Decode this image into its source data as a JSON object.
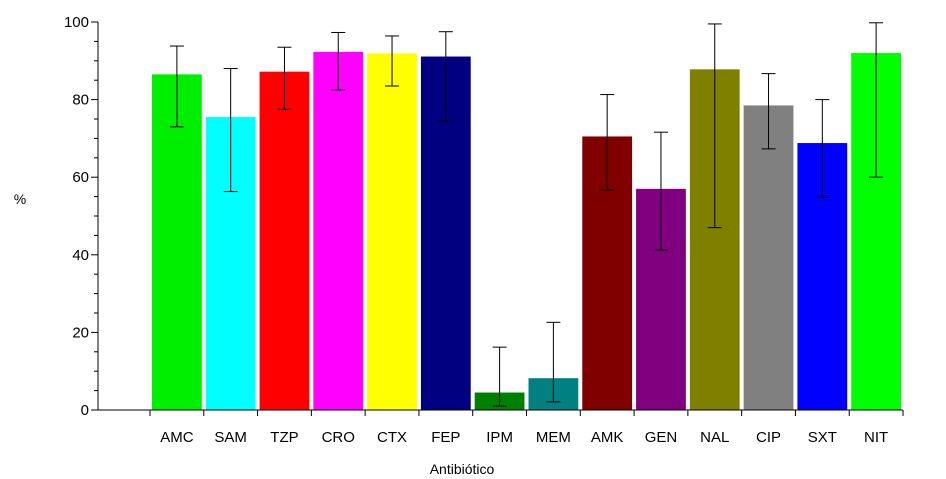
{
  "chart_data": {
    "type": "bar",
    "xlabel": "Antibiótico",
    "ylabel": "%",
    "ylim": [
      0,
      100
    ],
    "yticks": [
      "0",
      "20",
      "40",
      "60",
      "80",
      "100"
    ],
    "grid": false,
    "categories": [
      "AMC",
      "SAM",
      "TZP",
      "CRO",
      "CTX",
      "FEP",
      "IPM",
      "MEM",
      "AMK",
      "GEN",
      "NAL",
      "CIP",
      "SXT",
      "NIT"
    ],
    "values": [
      86.5,
      75.5,
      87.2,
      92.3,
      91.9,
      91.1,
      4.5,
      8.2,
      70.5,
      57.0,
      87.8,
      78.5,
      68.8,
      92.0
    ],
    "error_low": [
      73.0,
      56.3,
      77.5,
      82.5,
      83.5,
      74.5,
      1.0,
      2.1,
      56.7,
      41.2,
      47.0,
      67.3,
      54.8,
      60.0
    ],
    "error_high": [
      93.8,
      88.0,
      93.5,
      97.3,
      96.4,
      97.5,
      16.2,
      22.6,
      81.3,
      71.6,
      99.5,
      86.7,
      80.0,
      99.8
    ],
    "colors": [
      "#00ee00",
      "#00ffff",
      "#ff0000",
      "#ff00ff",
      "#ffff00",
      "#000080",
      "#008000",
      "#008080",
      "#800000",
      "#800080",
      "#808000",
      "#808080",
      "#0000ff",
      "#00ff00"
    ]
  }
}
